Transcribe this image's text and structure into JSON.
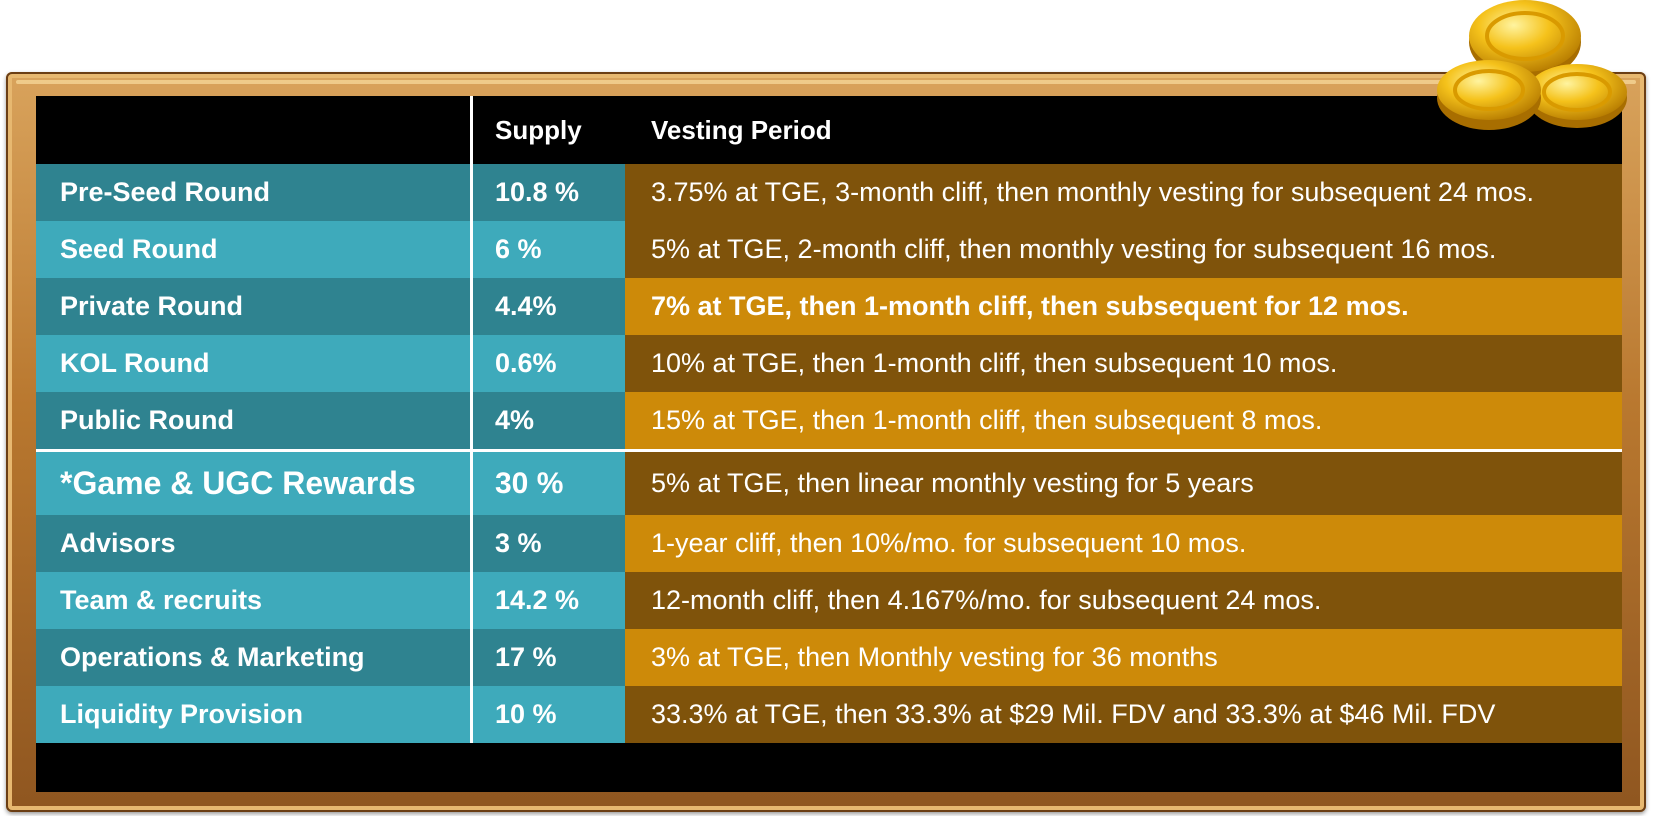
{
  "table": {
    "headers": [
      "",
      "Supply",
      "Vesting Period"
    ],
    "rows": [
      {
        "name": "Pre-Seed Round",
        "supply": "10.8 %",
        "vesting": "3.75% at TGE, 3-month cliff, then monthly vesting for subsequent 24 mos."
      },
      {
        "name": "Seed Round",
        "supply": "6 %",
        "vesting": "5% at TGE, 2-month cliff, then monthly vesting for subsequent 16 mos."
      },
      {
        "name": "Private Round",
        "supply": "4.4%",
        "vesting": "7% at TGE, then 1-month cliff, then subsequent for 12 mos."
      },
      {
        "name": "KOL Round",
        "supply": "0.6%",
        "vesting": "10% at TGE, then 1-month cliff, then subsequent 10 mos."
      },
      {
        "name": "Public Round",
        "supply": "4%",
        "vesting": "15% at TGE, then 1-month cliff, then subsequent 8 mos."
      },
      {
        "name": "*Game & UGC Rewards",
        "supply": "30 %",
        "vesting": "5% at TGE, then  linear monthly vesting for 5 years"
      },
      {
        "name": "Advisors",
        "supply": "3 %",
        "vesting": "1-year cliff, then 10%/mo. for subsequent 10 mos."
      },
      {
        "name": "Team & recruits",
        "supply": "14.2 %",
        "vesting": "12-month  cliff, then 4.167%/mo. for subsequent 24 mos."
      },
      {
        "name": "Operations & Marketing",
        "supply": "17 %",
        "vesting": "3% at TGE, then Monthly vesting for 36 months"
      },
      {
        "name": "Liquidity Provision",
        "supply": "10 %",
        "vesting": "33.3% at TGE, then 33.3% at $29 Mil. FDV and 33.3% at $46 Mil. FDV"
      }
    ]
  },
  "colors": {
    "teal_dark": "#2f8390",
    "teal_light": "#3eaabb",
    "brown_dark": "#7f530b",
    "gold_light": "#cd8a09",
    "frame_wood": "#c08035"
  },
  "icons": {
    "decoration": "gold-coins-icon"
  }
}
